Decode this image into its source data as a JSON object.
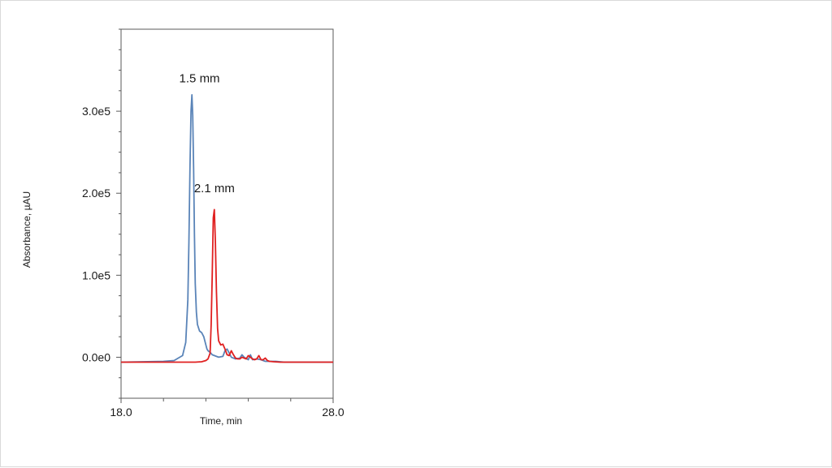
{
  "chart_data": {
    "type": "line",
    "xlabel": "Time, min",
    "ylabel": "Absorbance, µAU",
    "xlim": [
      18.0,
      28.0
    ],
    "ylim": [
      -50000,
      400000
    ],
    "x_tick_labels": [
      {
        "value": 18.0,
        "label": "18.0"
      },
      {
        "value": 28.0,
        "label": "28.0"
      }
    ],
    "x_minor_ticks": [
      20,
      22,
      24,
      26
    ],
    "y_tick_labels": [
      {
        "value": 0,
        "label": "0.0e0"
      },
      {
        "value": 100000,
        "label": "1.0e5"
      },
      {
        "value": 200000,
        "label": "2.0e5"
      },
      {
        "value": 300000,
        "label": "3.0e5"
      }
    ],
    "grid": false,
    "legend": "none",
    "annotations": [
      {
        "text": "1.5 mm",
        "x": 21.7,
        "y": 335000
      },
      {
        "text": "2.1 mm",
        "x": 22.4,
        "y": 201000
      }
    ],
    "series": [
      {
        "color": "#5a84b8",
        "x": [
          18.0,
          19.0,
          20.0,
          20.5,
          20.9,
          21.05,
          21.15,
          21.2,
          21.25,
          21.3,
          21.34,
          21.38,
          21.42,
          21.46,
          21.5,
          21.55,
          21.6,
          21.7,
          21.8,
          21.9,
          22.0,
          22.05,
          22.1,
          22.2,
          22.3,
          22.4,
          22.5,
          22.6,
          22.7,
          22.8,
          22.9,
          23.0,
          23.2,
          23.4,
          23.6,
          23.7,
          23.8,
          24.0,
          24.1,
          24.2,
          24.4,
          24.6,
          24.7,
          24.8,
          25.0,
          25.2,
          25.3,
          25.5,
          25.7,
          26.0,
          27.0,
          28.0
        ],
        "y": [
          -6000,
          -5500,
          -5000,
          -4000,
          2000,
          18000,
          70000,
          140000,
          230000,
          300000,
          320000,
          295000,
          230000,
          150000,
          90000,
          55000,
          40000,
          32000,
          30000,
          25000,
          15000,
          10000,
          8000,
          6000,
          3000,
          2000,
          1000,
          0,
          500,
          1000,
          8000,
          10000,
          0,
          -2000,
          -1000,
          3000,
          0,
          -3000,
          3000,
          -3000,
          -2000,
          -3000,
          -4000,
          -5000,
          -5000,
          -5000,
          -5000,
          -5500,
          -6000,
          -6000,
          -6000,
          -6000
        ]
      },
      {
        "color": "#e02020",
        "x": [
          18.0,
          19.0,
          20.0,
          21.0,
          21.5,
          21.8,
          22.0,
          22.1,
          22.2,
          22.25,
          22.3,
          22.35,
          22.4,
          22.45,
          22.5,
          22.55,
          22.6,
          22.7,
          22.8,
          22.9,
          23.0,
          23.1,
          23.2,
          23.3,
          23.4,
          23.5,
          23.6,
          23.7,
          23.8,
          23.9,
          24.0,
          24.1,
          24.2,
          24.3,
          24.4,
          24.5,
          24.6,
          24.7,
          24.8,
          24.9,
          25.0,
          25.2,
          25.5,
          26.0,
          27.0,
          28.0
        ],
        "y": [
          -6000,
          -6000,
          -6000,
          -6000,
          -6000,
          -5500,
          -4000,
          -2000,
          5000,
          40000,
          100000,
          170000,
          180000,
          140000,
          80000,
          35000,
          20000,
          15000,
          16000,
          10000,
          3000,
          2000,
          8000,
          3000,
          -1000,
          -2000,
          -2000,
          0,
          -1000,
          -2000,
          2000,
          0,
          -2000,
          -3000,
          -2000,
          2000,
          -3000,
          -3000,
          -1000,
          -4000,
          -5000,
          -5500,
          -6000,
          -6000,
          -6000,
          -6000
        ]
      }
    ]
  }
}
